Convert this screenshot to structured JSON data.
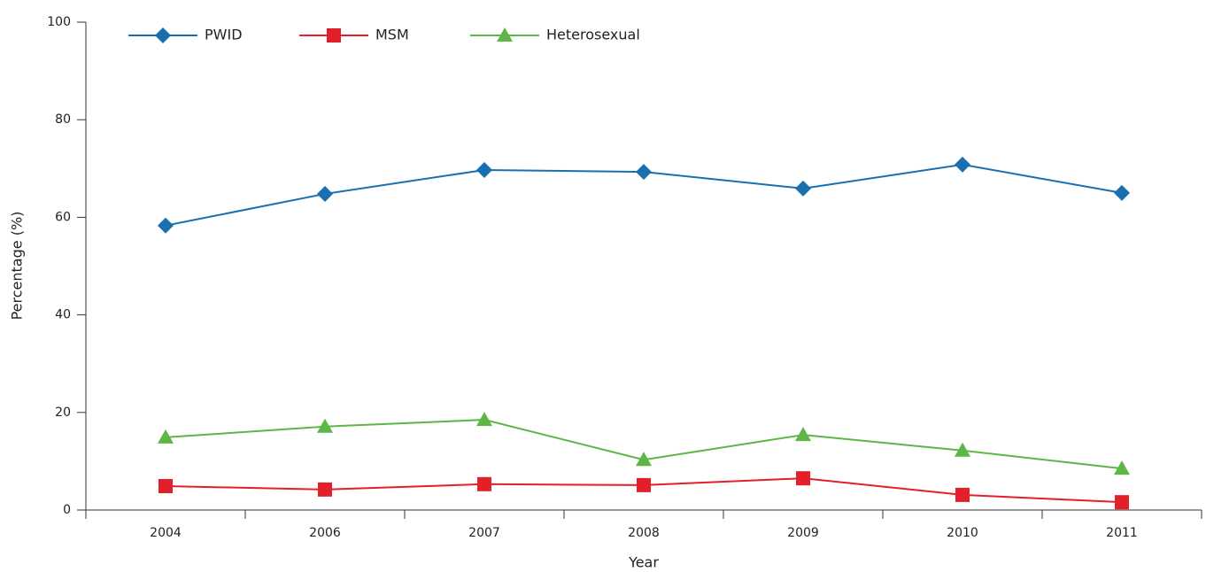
{
  "chart_data": {
    "type": "line",
    "categories": [
      "2004",
      "2006",
      "2007",
      "2008",
      "2009",
      "2010",
      "2011"
    ],
    "series": [
      {
        "name": "PWID",
        "color": "#1a6faf",
        "marker": "diamond",
        "values": [
          58.3,
          64.8,
          69.7,
          69.3,
          65.9,
          70.8,
          65.0
        ]
      },
      {
        "name": "MSM",
        "color": "#e3202a",
        "marker": "square",
        "values": [
          4.9,
          4.2,
          5.3,
          5.1,
          6.5,
          3.1,
          1.6
        ]
      },
      {
        "name": "Heterosexual",
        "color": "#5db646",
        "marker": "triangle",
        "values": [
          14.9,
          17.1,
          18.5,
          10.3,
          15.4,
          12.2,
          8.5
        ]
      }
    ],
    "xlabel": "Year",
    "ylabel": "Percentage (%)",
    "ylim": [
      0,
      100
    ],
    "yticks": [
      0,
      20,
      40,
      60,
      80,
      100
    ],
    "grid": false,
    "legend": "top-left"
  }
}
